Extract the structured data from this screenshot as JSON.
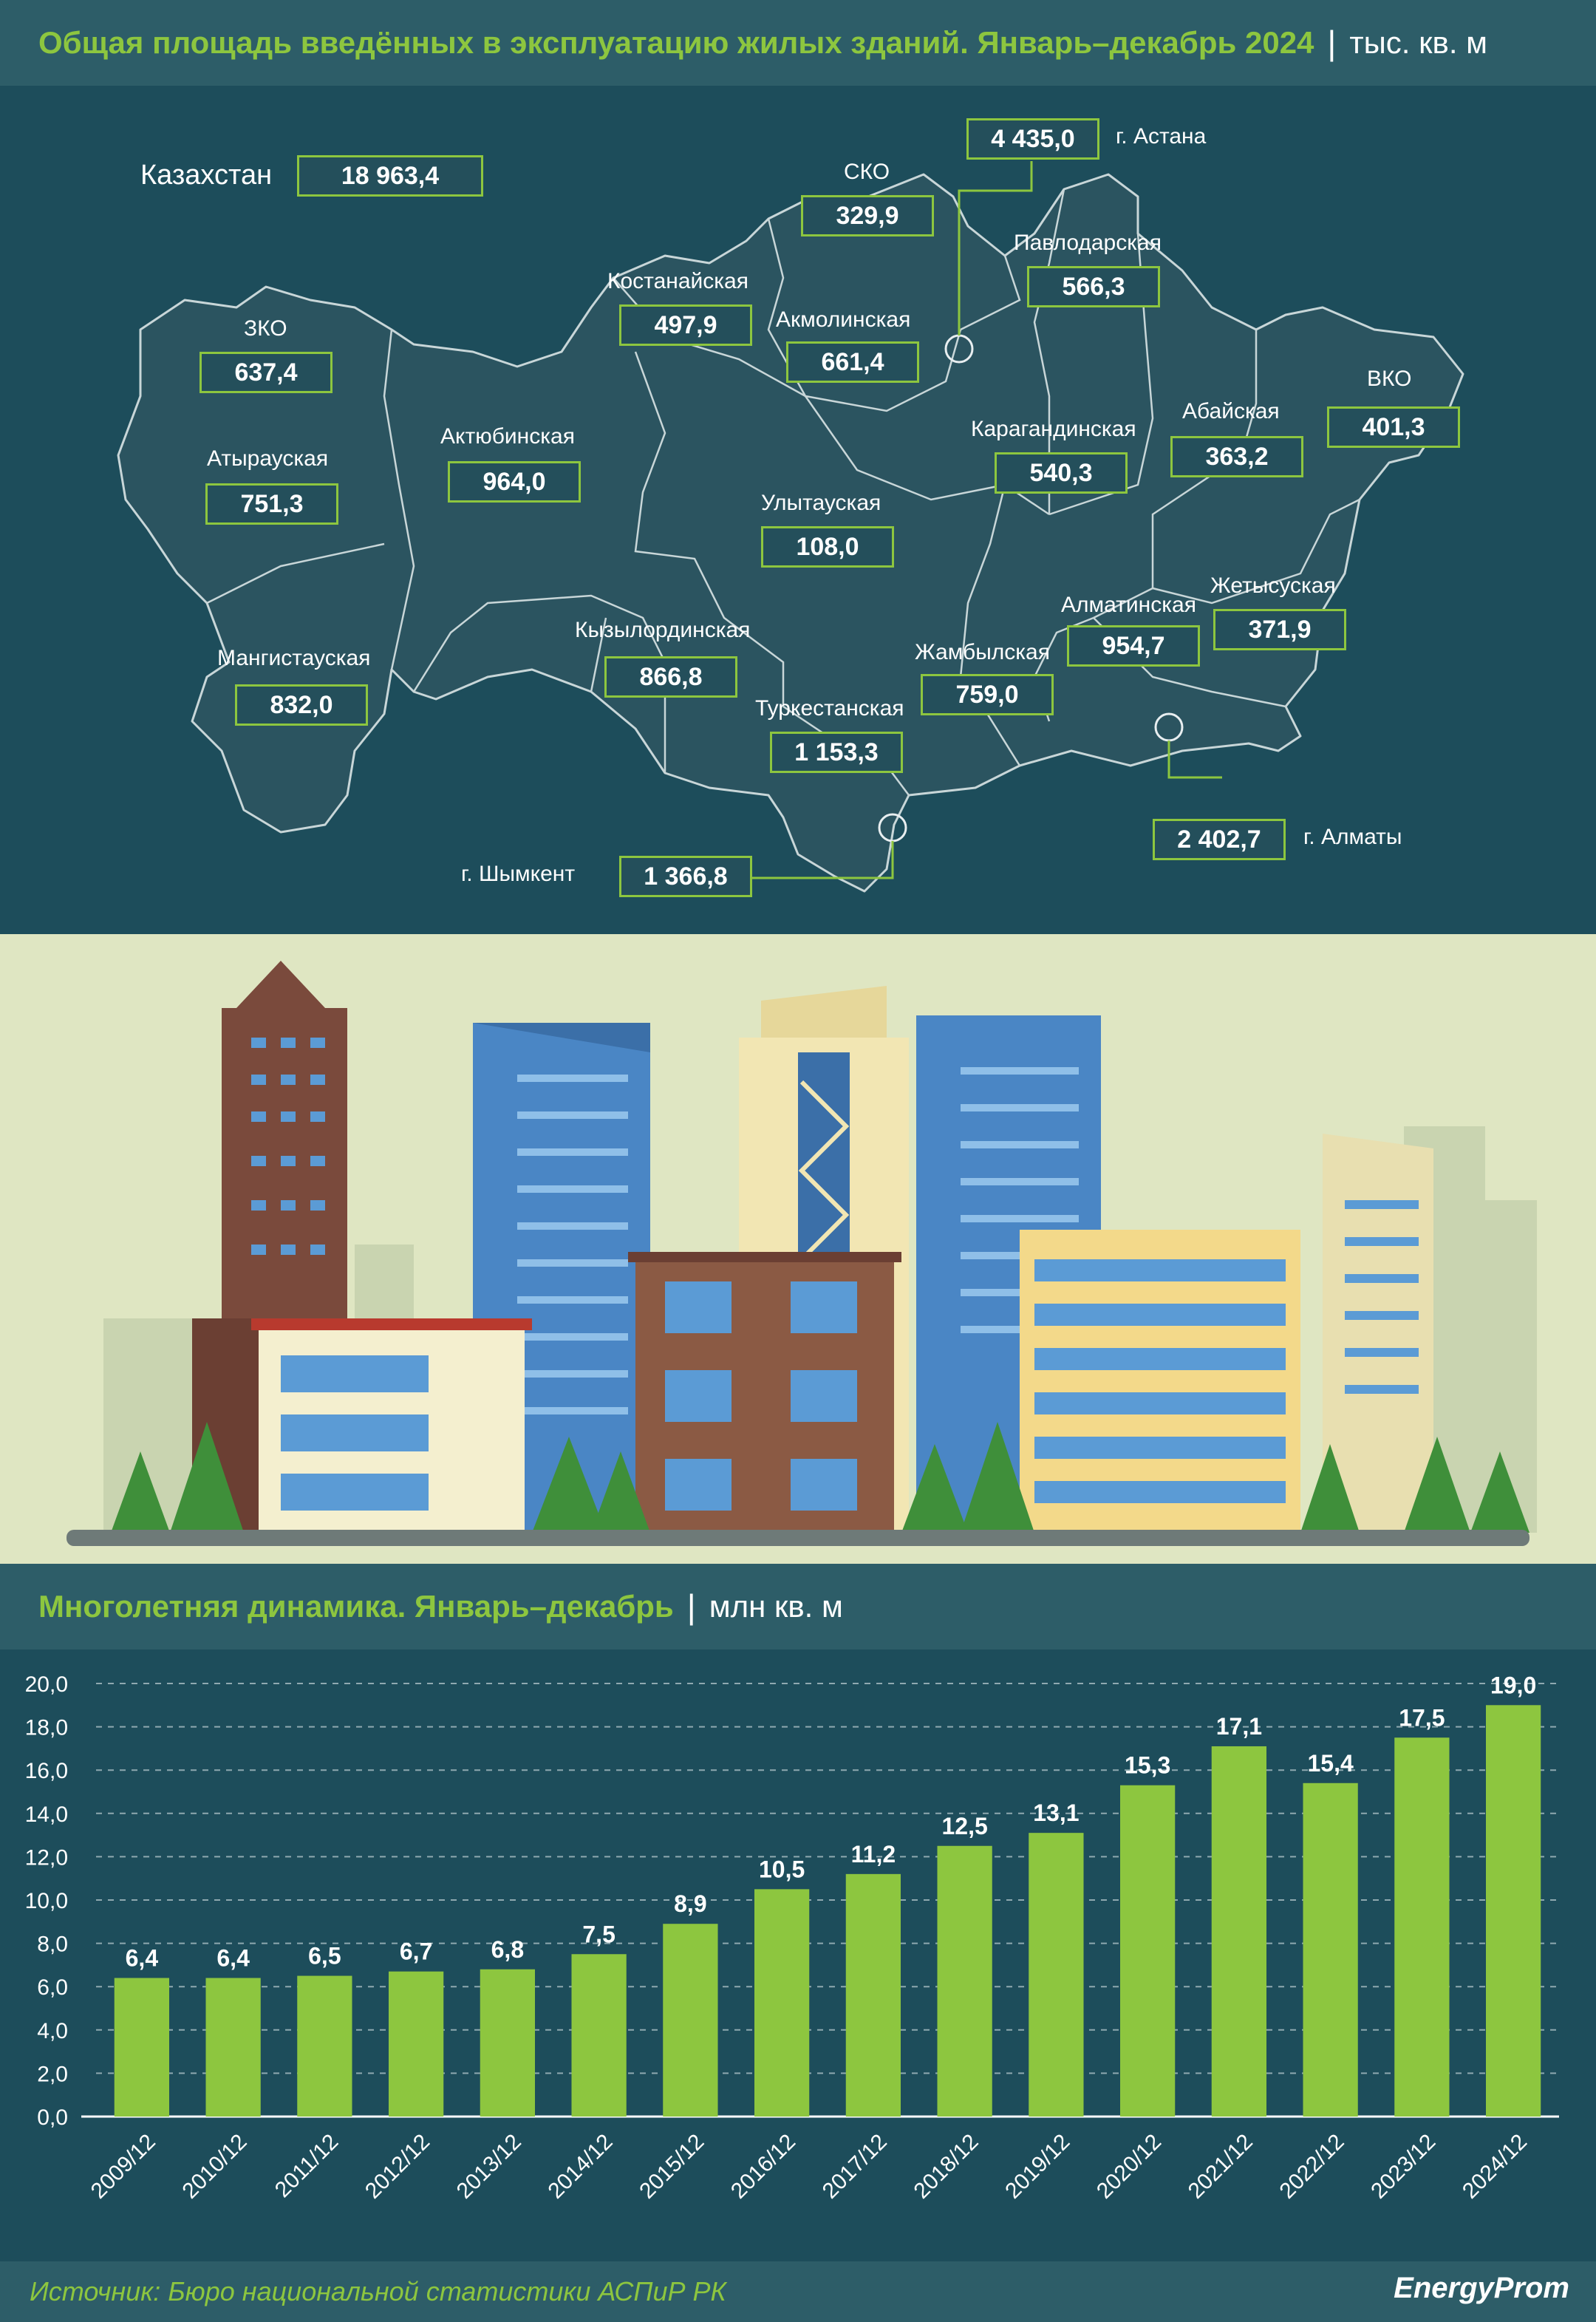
{
  "header": {
    "title": "Общая площадь введённых в эксплуатацию жилых зданий. Январь–декабрь 2024",
    "unit": "тыс. кв. м"
  },
  "map": {
    "total_label": "Казахстан",
    "total_value": "18 963,4",
    "regions": [
      {
        "name": "СКО",
        "value": "329,9"
      },
      {
        "name": "г. Астана",
        "value": "4 435,0"
      },
      {
        "name": "Павлодарская",
        "value": "566,3"
      },
      {
        "name": "Костанайская",
        "value": "497,9"
      },
      {
        "name": "Акмолинская",
        "value": "661,4"
      },
      {
        "name": "ЗКО",
        "value": "637,4"
      },
      {
        "name": "Актюбинская",
        "value": "964,0"
      },
      {
        "name": "Атырауская",
        "value": "751,3"
      },
      {
        "name": "Карагандинская",
        "value": "540,3"
      },
      {
        "name": "Абайская",
        "value": "363,2"
      },
      {
        "name": "ВКО",
        "value": "401,3"
      },
      {
        "name": "Улытауская",
        "value": "108,0"
      },
      {
        "name": "Мангистауская",
        "value": "832,0"
      },
      {
        "name": "Кызылординская",
        "value": "866,8"
      },
      {
        "name": "Жамбылская",
        "value": "759,0"
      },
      {
        "name": "Алматинская",
        "value": "954,7"
      },
      {
        "name": "Жетысуская",
        "value": "371,9"
      },
      {
        "name": "Туркестанская",
        "value": "1 153,3"
      },
      {
        "name": "г. Алматы",
        "value": "2 402,7"
      },
      {
        "name": "г. Шымкент",
        "value": "1 366,8"
      }
    ]
  },
  "section2": {
    "title": "Многолетняя динамика. Январь–декабрь",
    "unit": "млн кв. м"
  },
  "chart_data": {
    "type": "bar",
    "categories": [
      "2009/12",
      "2010/12",
      "2011/12",
      "2012/12",
      "2013/12",
      "2014/12",
      "2015/12",
      "2016/12",
      "2017/12",
      "2018/12",
      "2019/12",
      "2020/12",
      "2021/12",
      "2022/12",
      "2023/12",
      "2024/12"
    ],
    "values": [
      6.4,
      6.4,
      6.5,
      6.7,
      6.8,
      7.5,
      8.9,
      10.5,
      11.2,
      12.5,
      13.1,
      15.3,
      17.1,
      15.4,
      17.5,
      19.0
    ],
    "value_labels": [
      "6,4",
      "6,4",
      "6,5",
      "6,7",
      "6,8",
      "7,5",
      "8,9",
      "10,5",
      "11,2",
      "12,5",
      "13,1",
      "15,3",
      "17,1",
      "15,4",
      "17,5",
      "19,0"
    ],
    "yticks": [
      "0,0",
      "2,0",
      "4,0",
      "6,0",
      "8,0",
      "10,0",
      "12,0",
      "14,0",
      "16,0",
      "18,0",
      "20,0"
    ],
    "ylim": [
      0,
      20
    ],
    "grid": true,
    "bar_color": "#8dc63f"
  },
  "footer": {
    "source": "Источник: Бюро национальной статистики АСПиР РК",
    "brand": "EnergyProm"
  }
}
